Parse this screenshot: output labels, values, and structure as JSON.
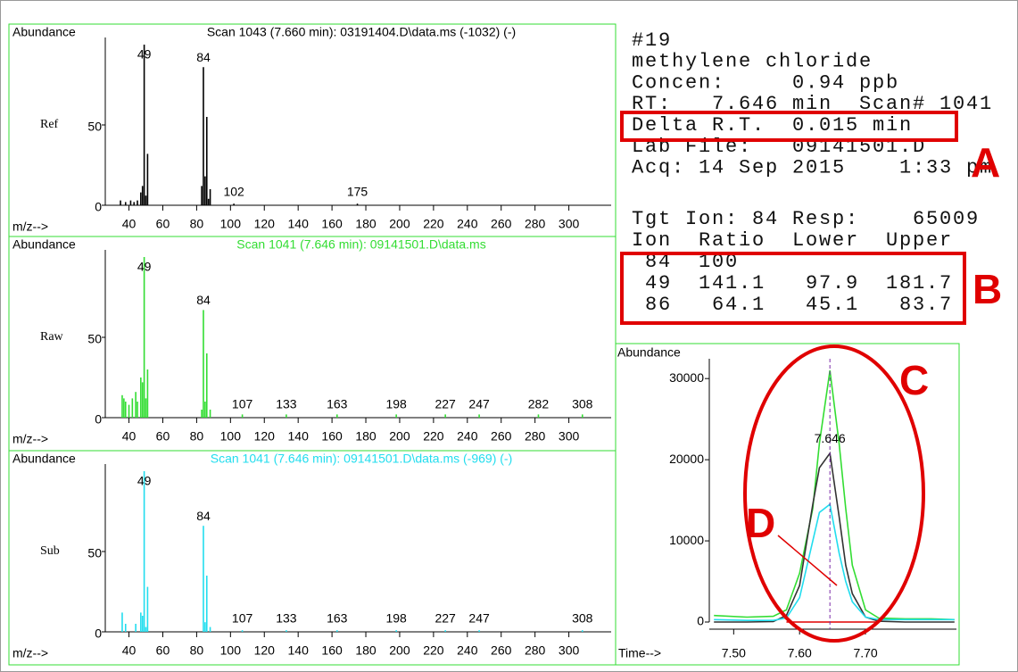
{
  "info": {
    "lines": [
      "#19",
      "methylene chloride",
      "Concen:     0.94 ppb",
      "RT:   7.646 min  Scan# 1041",
      "Delta R.T.  0.015 min",
      "Lab File:   09141501.D",
      "Acq: 14 Sep 2015    1:33 pm"
    ],
    "ion_lines": [
      "Tgt Ion: 84 Resp:    65009",
      "Ion  Ratio  Lower  Upper",
      " 84  100",
      " 49  141.1   97.9  181.7",
      " 86   64.1   45.1   83.7"
    ]
  },
  "annotations": [
    "A",
    "B",
    "C",
    "D"
  ],
  "chart_data": [
    {
      "type": "bar",
      "title": "Scan 1043 (7.660 min): 03191404.D\\data.ms (-1032) (-)",
      "ylabel": "Ref",
      "ylabel_top": "Abundance",
      "xlabel": "m/z-->",
      "color": "#000000",
      "x": [
        35,
        38,
        41,
        43,
        45,
        47,
        48,
        49,
        50,
        51,
        83,
        84,
        85,
        86,
        87,
        88,
        102,
        175
      ],
      "values": [
        3,
        2,
        3,
        2,
        3,
        8,
        12,
        100,
        6,
        32,
        12,
        86,
        18,
        55,
        4,
        10,
        1,
        1
      ],
      "peak_labels": [
        49,
        84,
        102,
        175
      ],
      "xlim": [
        26,
        325
      ],
      "xticks": [
        40,
        60,
        80,
        100,
        120,
        140,
        160,
        180,
        200,
        220,
        240,
        260,
        280,
        300
      ],
      "ylim": [
        0,
        100
      ],
      "yticks": [
        0,
        50
      ]
    },
    {
      "type": "bar",
      "title": "Scan 1041 (7.646 min): 09141501.D\\data.ms",
      "ylabel": "Raw",
      "ylabel_top": "Abundance",
      "xlabel": "m/z-->",
      "color": "#33dd33",
      "x": [
        36,
        37,
        38,
        40,
        42,
        44,
        45,
        47,
        48,
        49,
        50,
        51,
        83,
        84,
        85,
        86,
        88,
        107,
        133,
        163,
        198,
        227,
        247,
        282,
        308
      ],
      "values": [
        14,
        12,
        10,
        8,
        12,
        16,
        10,
        25,
        22,
        100,
        12,
        30,
        5,
        67,
        10,
        40,
        5,
        2,
        2,
        2,
        2,
        2,
        2,
        2,
        2
      ],
      "peak_labels": [
        49,
        84,
        107,
        133,
        163,
        198,
        227,
        247,
        282,
        308
      ],
      "xlim": [
        26,
        325
      ],
      "xticks": [
        40,
        60,
        80,
        100,
        120,
        140,
        160,
        180,
        200,
        220,
        240,
        260,
        280,
        300
      ],
      "ylim": [
        0,
        100
      ],
      "yticks": [
        0,
        50
      ]
    },
    {
      "type": "bar",
      "title": "Scan 1041 (7.646 min): 09141501.D\\data.ms (-969) (-)",
      "ylabel": "Sub",
      "ylabel_top": "Abundance",
      "xlabel": "m/z-->",
      "color": "#22ddee",
      "x": [
        36,
        38,
        44,
        47,
        48,
        49,
        50,
        51,
        84,
        85,
        86,
        88,
        107,
        133,
        163,
        198,
        227,
        247,
        308
      ],
      "values": [
        12,
        5,
        5,
        12,
        10,
        100,
        3,
        28,
        66,
        6,
        35,
        3,
        1,
        1,
        1,
        1,
        1,
        1,
        1
      ],
      "peak_labels": [
        49,
        84,
        107,
        133,
        163,
        198,
        227,
        247,
        308
      ],
      "xlim": [
        26,
        325
      ],
      "xticks": [
        40,
        60,
        80,
        100,
        120,
        140,
        160,
        180,
        200,
        220,
        240,
        260,
        280,
        300
      ],
      "ylim": [
        0,
        100
      ],
      "yticks": [
        0,
        50
      ]
    },
    {
      "type": "line",
      "ylabel_top": "Abundance",
      "xlabel": "Time-->",
      "peak_label": 7.646,
      "x": [
        7.47,
        7.52,
        7.56,
        7.58,
        7.6,
        7.62,
        7.63,
        7.646,
        7.66,
        7.67,
        7.68,
        7.7,
        7.72,
        7.76,
        7.8,
        7.835
      ],
      "series": [
        {
          "color": "#33dd33",
          "values": [
            800,
            600,
            700,
            1500,
            6000,
            14000,
            22000,
            31000,
            22000,
            14000,
            7000,
            1500,
            500,
            400,
            400,
            300
          ]
        },
        {
          "color": "#333333",
          "values": [
            0,
            0,
            50,
            800,
            4500,
            14500,
            19000,
            20800,
            13000,
            7000,
            3500,
            600,
            100,
            0,
            0,
            0
          ]
        },
        {
          "color": "#22ddee",
          "values": [
            300,
            200,
            200,
            500,
            3000,
            10000,
            13500,
            14500,
            8500,
            5000,
            2500,
            600,
            300,
            300,
            300,
            300
          ]
        }
      ],
      "xlim": [
        7.463,
        7.838
      ],
      "xticks": [
        {
          "value": 7.5,
          "label": "7.50"
        },
        {
          "value": 7.6,
          "label": "7.60"
        },
        {
          "value": 7.7,
          "label": "7.70"
        }
      ],
      "ylim": [
        0,
        32000
      ],
      "yticks": [
        0,
        10000,
        20000,
        30000
      ]
    }
  ]
}
